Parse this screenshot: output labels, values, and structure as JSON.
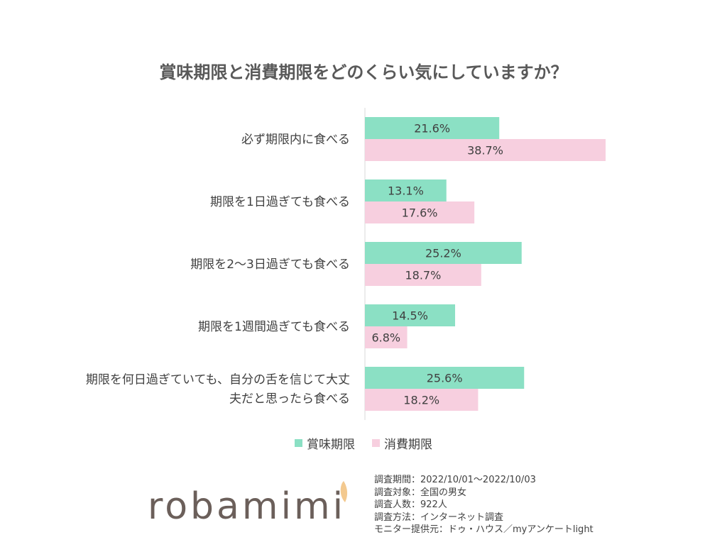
{
  "chart_data": {
    "type": "bar",
    "orientation": "horizontal",
    "title": "賞味期限と消費期限をどのくらい気にしていますか？",
    "categories": [
      [
        "必ず期限内に食べる"
      ],
      [
        "期限を1日過ぎても食べる"
      ],
      [
        "期限を2～3日過ぎても食べる"
      ],
      [
        "期限を1週間過ぎても食べる"
      ],
      [
        "期限を何日過ぎていても、自分の舌を信じて大丈",
        "夫だと思ったら食べる"
      ]
    ],
    "series": [
      {
        "name": "賞味期限",
        "color": "#8be0c4",
        "values": [
          21.6,
          13.1,
          25.2,
          14.5,
          25.6
        ]
      },
      {
        "name": "消費期限",
        "color": "#f7cfdf",
        "values": [
          38.7,
          17.6,
          18.7,
          6.8,
          18.2
        ]
      }
    ],
    "value_suffix": "%",
    "xlim": [
      0,
      40
    ],
    "legend_position": "bottom",
    "grid": false
  },
  "logo_text": "robamimi",
  "notes": [
    "調査期間：2022/10/01～2022/10/03",
    "調査対象：全国の男女",
    "調査人数：922人",
    "調査方法：インターネット調査",
    "モニター提供元：ドゥ・ハウス／myアンケートlight"
  ]
}
